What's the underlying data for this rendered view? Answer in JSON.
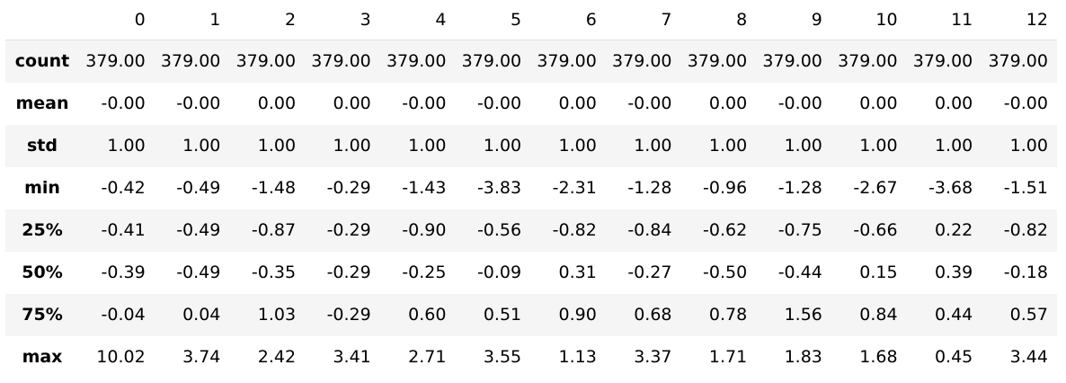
{
  "table": {
    "corner": "",
    "columns": [
      "0",
      "1",
      "2",
      "3",
      "4",
      "5",
      "6",
      "7",
      "8",
      "9",
      "10",
      "11",
      "12"
    ],
    "rows": [
      {
        "label": "count",
        "values": [
          "379.00",
          "379.00",
          "379.00",
          "379.00",
          "379.00",
          "379.00",
          "379.00",
          "379.00",
          "379.00",
          "379.00",
          "379.00",
          "379.00",
          "379.00"
        ]
      },
      {
        "label": "mean",
        "values": [
          "-0.00",
          "-0.00",
          "0.00",
          "0.00",
          "-0.00",
          "-0.00",
          "0.00",
          "-0.00",
          "0.00",
          "-0.00",
          "0.00",
          "0.00",
          "-0.00"
        ]
      },
      {
        "label": "std",
        "values": [
          "1.00",
          "1.00",
          "1.00",
          "1.00",
          "1.00",
          "1.00",
          "1.00",
          "1.00",
          "1.00",
          "1.00",
          "1.00",
          "1.00",
          "1.00"
        ]
      },
      {
        "label": "min",
        "values": [
          "-0.42",
          "-0.49",
          "-1.48",
          "-0.29",
          "-1.43",
          "-3.83",
          "-2.31",
          "-1.28",
          "-0.96",
          "-1.28",
          "-2.67",
          "-3.68",
          "-1.51"
        ]
      },
      {
        "label": "25%",
        "values": [
          "-0.41",
          "-0.49",
          "-0.87",
          "-0.29",
          "-0.90",
          "-0.56",
          "-0.82",
          "-0.84",
          "-0.62",
          "-0.75",
          "-0.66",
          "0.22",
          "-0.82"
        ]
      },
      {
        "label": "50%",
        "values": [
          "-0.39",
          "-0.49",
          "-0.35",
          "-0.29",
          "-0.25",
          "-0.09",
          "0.31",
          "-0.27",
          "-0.50",
          "-0.44",
          "0.15",
          "0.39",
          "-0.18"
        ]
      },
      {
        "label": "75%",
        "values": [
          "-0.04",
          "0.04",
          "1.03",
          "-0.29",
          "0.60",
          "0.51",
          "0.90",
          "0.68",
          "0.78",
          "1.56",
          "0.84",
          "0.44",
          "0.57"
        ]
      },
      {
        "label": "max",
        "values": [
          "10.02",
          "3.74",
          "2.42",
          "3.41",
          "2.71",
          "3.55",
          "1.13",
          "3.37",
          "1.71",
          "1.83",
          "1.68",
          "0.45",
          "3.44"
        ]
      }
    ]
  }
}
